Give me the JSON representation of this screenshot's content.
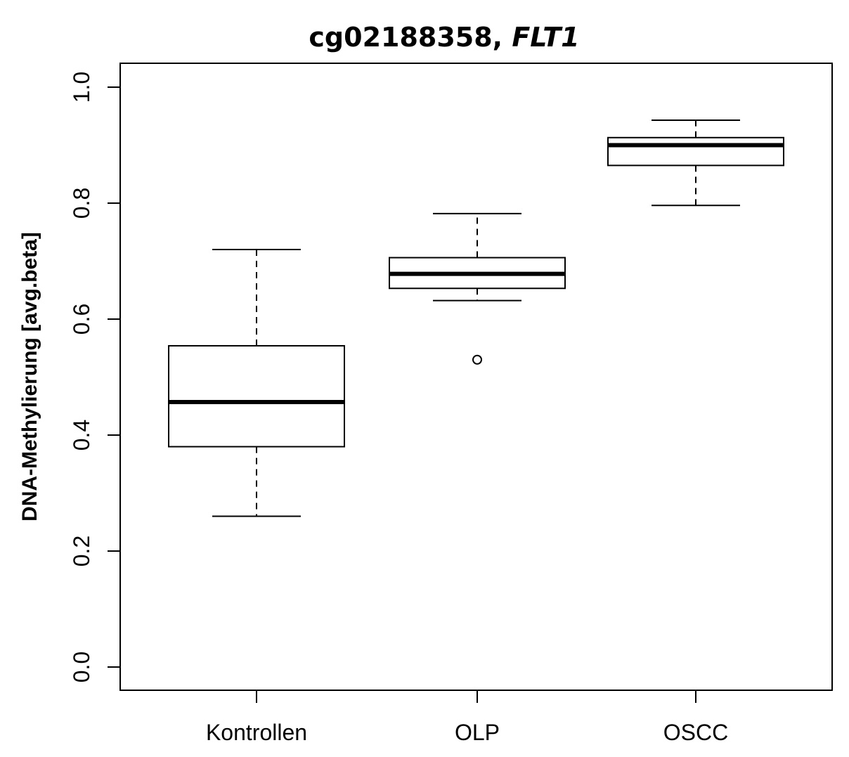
{
  "chart_data": {
    "type": "boxplot",
    "title_main": "cg02188358, ",
    "title_gene": "FLT1",
    "ylabel": "DNA-Methylierung [avg.beta]",
    "xlabel": "",
    "ylim": [
      0.0,
      1.0
    ],
    "yticks": [
      "0.0",
      "0.2",
      "0.4",
      "0.6",
      "0.8",
      "1.0"
    ],
    "categories": [
      "Kontrollen",
      "OLP",
      "OSCC"
    ],
    "boxes": [
      {
        "category": "Kontrollen",
        "whisker_low": 0.26,
        "q1": 0.38,
        "median": 0.457,
        "q3": 0.554,
        "whisker_high": 0.72,
        "outliers": []
      },
      {
        "category": "OLP",
        "whisker_low": 0.632,
        "q1": 0.653,
        "median": 0.678,
        "q3": 0.706,
        "whisker_high": 0.782,
        "outliers": [
          0.53
        ]
      },
      {
        "category": "OSCC",
        "whisker_low": 0.796,
        "q1": 0.865,
        "median": 0.9,
        "q3": 0.913,
        "whisker_high": 0.943,
        "outliers": []
      }
    ],
    "grid": false,
    "legend": "none"
  }
}
